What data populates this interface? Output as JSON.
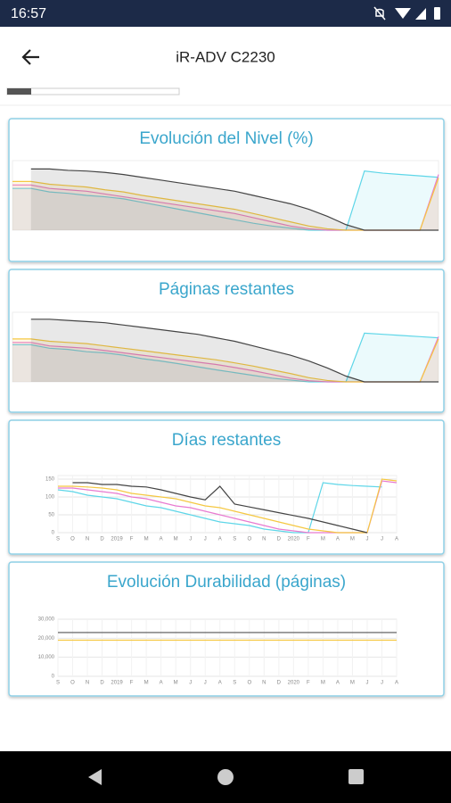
{
  "status_bar": {
    "time": "16:57"
  },
  "header": {
    "title": "iR-ADV C2230"
  },
  "cards": [
    {
      "title": "Evolución del Nivel (%)",
      "chart": {
        "type": "line",
        "ylim": [
          0,
          100
        ],
        "series": [
          {
            "color": "#5ed6e8",
            "values": [
              60,
              60,
              55,
              53,
              50,
              48,
              45,
              40,
              35,
              30,
              25,
              20,
              15,
              10,
              6,
              3,
              0,
              0,
              0,
              85,
              82,
              80,
              78,
              76
            ]
          },
          {
            "color": "#e87ad0",
            "values": [
              65,
              65,
              60,
              58,
              56,
              52,
              48,
              44,
              40,
              36,
              32,
              28,
              24,
              18,
              12,
              6,
              2,
              0,
              0,
              0,
              0,
              0,
              0,
              80
            ]
          },
          {
            "color": "#f5c842",
            "values": [
              70,
              70,
              66,
              64,
              62,
              58,
              55,
              50,
              46,
              42,
              38,
              34,
              30,
              24,
              18,
              12,
              6,
              2,
              0,
              0,
              0,
              0,
              0,
              75
            ]
          },
          {
            "color": "#444444",
            "values": [
              null,
              88,
              88,
              86,
              85,
              83,
              80,
              76,
              72,
              68,
              64,
              60,
              56,
              50,
              44,
              38,
              30,
              20,
              8,
              0,
              0,
              0,
              0,
              0
            ]
          }
        ]
      }
    },
    {
      "title": "Páginas restantes",
      "chart": {
        "type": "line",
        "ylim": [
          0,
          3000
        ],
        "series": [
          {
            "color": "#5ed6e8",
            "values": [
              1600,
              1600,
              1450,
              1400,
              1300,
              1250,
              1150,
              1000,
              900,
              780,
              650,
              520,
              400,
              280,
              160,
              80,
              0,
              0,
              0,
              2100,
              2050,
              2000,
              1950,
              1900
            ]
          },
          {
            "color": "#e87ad0",
            "values": [
              1700,
              1700,
              1550,
              1500,
              1450,
              1350,
              1250,
              1150,
              1050,
              950,
              850,
              750,
              620,
              480,
              320,
              160,
              50,
              0,
              0,
              0,
              0,
              0,
              0,
              1950
            ]
          },
          {
            "color": "#f5c842",
            "values": [
              1850,
              1850,
              1750,
              1700,
              1650,
              1550,
              1450,
              1350,
              1250,
              1150,
              1050,
              950,
              820,
              680,
              520,
              360,
              180,
              60,
              0,
              0,
              0,
              0,
              0,
              1850
            ]
          },
          {
            "color": "#444444",
            "values": [
              null,
              2700,
              2700,
              2650,
              2600,
              2550,
              2450,
              2350,
              2250,
              2150,
              2050,
              1900,
              1750,
              1550,
              1350,
              1150,
              900,
              600,
              250,
              0,
              0,
              0,
              0,
              0
            ]
          }
        ]
      }
    },
    {
      "title": "Días restantes",
      "chart": {
        "type": "line",
        "ylim": [
          0,
          160
        ],
        "yticks": [
          0,
          50,
          100,
          150
        ],
        "categories": [
          "S",
          "O",
          "N",
          "D",
          "2019",
          "F",
          "M",
          "A",
          "M",
          "J",
          "J",
          "A",
          "S",
          "O",
          "N",
          "D",
          "2020",
          "F",
          "M",
          "A",
          "M",
          "J",
          "J",
          "A"
        ],
        "series": [
          {
            "color": "#5ed6e8",
            "values": [
              120,
              115,
              105,
              100,
              95,
              85,
              75,
              70,
              60,
              50,
              40,
              30,
              25,
              20,
              10,
              5,
              0,
              0,
              140,
              135,
              132,
              130,
              128,
              null
            ]
          },
          {
            "color": "#e87ad0",
            "values": [
              125,
              125,
              120,
              115,
              110,
              100,
              95,
              85,
              75,
              70,
              60,
              50,
              40,
              30,
              20,
              10,
              5,
              0,
              0,
              0,
              0,
              0,
              145,
              140
            ]
          },
          {
            "color": "#f5c842",
            "values": [
              130,
              130,
              128,
              125,
              120,
              110,
              105,
              100,
              95,
              85,
              75,
              70,
              60,
              50,
              40,
              30,
              20,
              10,
              5,
              0,
              0,
              0,
              150,
              145
            ]
          },
          {
            "color": "#444444",
            "values": [
              null,
              140,
              140,
              135,
              135,
              130,
              128,
              120,
              110,
              100,
              92,
              130,
              80,
              72,
              64,
              56,
              48,
              40,
              30,
              20,
              10,
              0,
              null,
              null
            ]
          }
        ]
      }
    },
    {
      "title": "Evolución Durabilidad (páginas)",
      "chart": {
        "type": "line",
        "ylim": [
          0,
          30000
        ],
        "yticks": [
          {
            "value": 0,
            "label": "0"
          },
          {
            "value": 10000,
            "label": "10,000"
          },
          {
            "value": 20000,
            "label": "20,000"
          },
          {
            "value": 30000,
            "label": "30,000"
          }
        ],
        "categories": [
          "S",
          "O",
          "N",
          "D",
          "2019",
          "F",
          "M",
          "A",
          "M",
          "J",
          "J",
          "A",
          "S",
          "O",
          "N",
          "D",
          "2020",
          "F",
          "M",
          "A",
          "M",
          "J",
          "J",
          "A"
        ],
        "series": [
          {
            "color": "#555555",
            "values": [
              23000,
              23000,
              23000,
              23000,
              23000,
              23000,
              23000,
              23000,
              23000,
              23000,
              23000,
              23000,
              23000,
              23000,
              23000,
              23000,
              23000,
              23000,
              23000,
              23000,
              23000,
              23000,
              23000,
              23000
            ]
          },
          {
            "color": "#f5c842",
            "values": [
              19000,
              19000,
              19000,
              19000,
              19000,
              19000,
              19000,
              19000,
              19000,
              19000,
              19000,
              19000,
              19000,
              19000,
              19000,
              19000,
              19000,
              19000,
              19000,
              19000,
              19000,
              19000,
              19000,
              19000
            ]
          }
        ]
      }
    }
  ]
}
